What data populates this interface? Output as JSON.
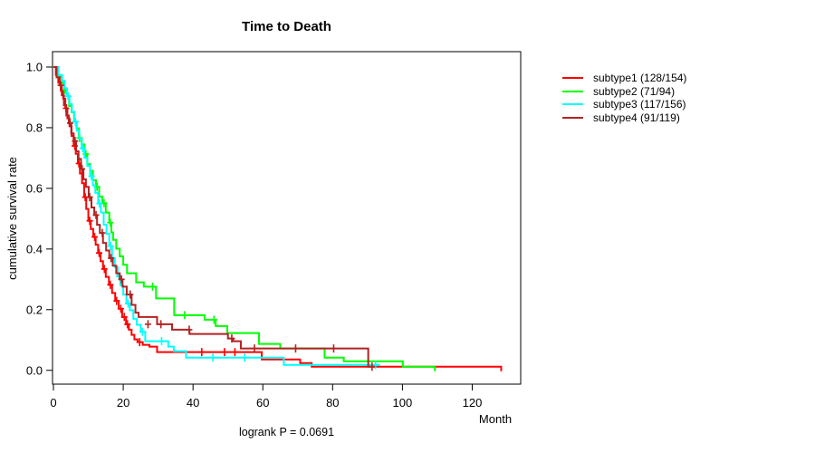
{
  "title": "Time to Death",
  "footer": "logrank P = 0.0691",
  "x_axis": {
    "label": "Month",
    "tick_labels": [
      "0",
      "20",
      "40",
      "60",
      "80",
      "100",
      "120"
    ],
    "tick_values": [
      0,
      20,
      40,
      60,
      80,
      100,
      120
    ]
  },
  "y_axis": {
    "label": "cumulative survival rate",
    "tick_labels": [
      "0.0",
      "0.2",
      "0.4",
      "0.6",
      "0.8",
      "1.0"
    ],
    "tick_values": [
      0,
      0.2,
      0.4,
      0.6,
      0.8,
      1.0
    ]
  },
  "colors": {
    "axis": "#000000",
    "background": "#ffffff",
    "subtype1": "#ff0000",
    "subtype2": "#00ff00",
    "subtype3": "#00ffff",
    "subtype4": "#b22222"
  },
  "chart_data": {
    "type": "line",
    "variant": "kaplan-meier-step",
    "title": "Time to Death",
    "xlabel": "Month",
    "ylabel": "cumulative survival rate",
    "annotation": "logrank P = 0.0691",
    "xlim": [
      0,
      134
    ],
    "ylim": [
      0,
      1
    ],
    "x_ticks": [
      0,
      20,
      40,
      60,
      80,
      100,
      120
    ],
    "y_ticks": [
      0,
      0.2,
      0.4,
      0.6,
      0.8,
      1.0
    ],
    "grid": false,
    "legend_position": "right",
    "series": [
      {
        "name": "subtype1",
        "legend_label": "subtype1 (128/154)",
        "color": "#ff0000",
        "events": 128,
        "n": 154,
        "end_month": 128.3,
        "terminal_drop": true,
        "steps": [
          [
            0,
            1.0
          ],
          [
            0.7,
            0.974
          ],
          [
            1.4,
            0.948
          ],
          [
            2.1,
            0.922
          ],
          [
            2.8,
            0.896
          ],
          [
            3.4,
            0.864
          ],
          [
            4.0,
            0.831
          ],
          [
            4.6,
            0.805
          ],
          [
            5.2,
            0.773
          ],
          [
            5.8,
            0.74
          ],
          [
            6.4,
            0.714
          ],
          [
            7.0,
            0.682
          ],
          [
            7.6,
            0.649
          ],
          [
            8.2,
            0.617
          ],
          [
            8.8,
            0.571
          ],
          [
            9.4,
            0.532
          ],
          [
            10.0,
            0.493
          ],
          [
            10.7,
            0.466
          ],
          [
            11.4,
            0.44
          ],
          [
            12.1,
            0.414
          ],
          [
            12.8,
            0.387
          ],
          [
            13.5,
            0.36
          ],
          [
            14.2,
            0.334
          ],
          [
            15.0,
            0.308
          ],
          [
            15.9,
            0.282
          ],
          [
            16.8,
            0.255
          ],
          [
            17.7,
            0.229
          ],
          [
            18.7,
            0.203
          ],
          [
            19.7,
            0.176
          ],
          [
            20.8,
            0.152
          ],
          [
            21.6,
            0.134
          ],
          [
            22.4,
            0.117
          ],
          [
            23.2,
            0.102
          ],
          [
            24.1,
            0.093
          ],
          [
            25.6,
            0.084
          ],
          [
            27.5,
            0.078
          ],
          [
            29.7,
            0.06
          ],
          [
            59.7,
            0.036
          ],
          [
            70.7,
            0.024
          ],
          [
            74.0,
            0.012
          ]
        ],
        "censors": [
          [
            3.6,
            0.864
          ],
          [
            6.1,
            0.74
          ],
          [
            7.3,
            0.682
          ],
          [
            9.1,
            0.571
          ],
          [
            10.4,
            0.493
          ],
          [
            11.8,
            0.44
          ],
          [
            13.1,
            0.387
          ],
          [
            14.6,
            0.334
          ],
          [
            16.3,
            0.282
          ],
          [
            18.1,
            0.229
          ],
          [
            19.3,
            0.203
          ],
          [
            20.3,
            0.176
          ],
          [
            21.2,
            0.152
          ],
          [
            24.7,
            0.093
          ],
          [
            42.5,
            0.06
          ],
          [
            49.0,
            0.06
          ],
          [
            52.0,
            0.06
          ]
        ]
      },
      {
        "name": "subtype2",
        "legend_label": "subtype2 (71/94)",
        "color": "#00ff00",
        "events": 71,
        "n": 94,
        "end_month": 109.3,
        "terminal_drop": true,
        "steps": [
          [
            0,
            1.0
          ],
          [
            1.2,
            0.968
          ],
          [
            2.4,
            0.947
          ],
          [
            3.1,
            0.925
          ],
          [
            3.8,
            0.904
          ],
          [
            4.5,
            0.872
          ],
          [
            5.2,
            0.851
          ],
          [
            5.9,
            0.82
          ],
          [
            6.6,
            0.798
          ],
          [
            7.3,
            0.766
          ],
          [
            8.1,
            0.745
          ],
          [
            8.9,
            0.713
          ],
          [
            9.7,
            0.68
          ],
          [
            10.5,
            0.658
          ],
          [
            11.3,
            0.627
          ],
          [
            12.2,
            0.605
          ],
          [
            13.1,
            0.573
          ],
          [
            14.0,
            0.551
          ],
          [
            15.0,
            0.52
          ],
          [
            16.0,
            0.487
          ],
          [
            16.6,
            0.455
          ],
          [
            17.1,
            0.43
          ],
          [
            18.0,
            0.401
          ],
          [
            19.0,
            0.376
          ],
          [
            20.0,
            0.348
          ],
          [
            21.1,
            0.32
          ],
          [
            23.7,
            0.29
          ],
          [
            25.9,
            0.276
          ],
          [
            29.4,
            0.237
          ],
          [
            34.6,
            0.182
          ],
          [
            43.3,
            0.167
          ],
          [
            46.5,
            0.146
          ],
          [
            49.8,
            0.123
          ],
          [
            58.9,
            0.087
          ],
          [
            65.0,
            0.072
          ],
          [
            77.7,
            0.042
          ],
          [
            83.2,
            0.03
          ],
          [
            100.1,
            0.012
          ]
        ],
        "censors": [
          [
            3.3,
            0.925
          ],
          [
            7.5,
            0.766
          ],
          [
            9.3,
            0.713
          ],
          [
            12.5,
            0.605
          ],
          [
            14.5,
            0.551
          ],
          [
            16.3,
            0.487
          ],
          [
            28.4,
            0.276
          ],
          [
            37.6,
            0.182
          ],
          [
            46.0,
            0.167
          ]
        ]
      },
      {
        "name": "subtype3",
        "legend_label": "subtype3 (117/156)",
        "color": "#00ffff",
        "events": 117,
        "n": 156,
        "end_month": 93.6,
        "terminal_drop": false,
        "steps": [
          [
            0,
            1.0
          ],
          [
            1.4,
            0.974
          ],
          [
            2.5,
            0.955
          ],
          [
            3.2,
            0.93
          ],
          [
            3.9,
            0.904
          ],
          [
            4.6,
            0.878
          ],
          [
            5.3,
            0.852
          ],
          [
            6.0,
            0.82
          ],
          [
            6.7,
            0.79
          ],
          [
            7.4,
            0.764
          ],
          [
            8.1,
            0.732
          ],
          [
            8.9,
            0.7
          ],
          [
            9.7,
            0.674
          ],
          [
            10.5,
            0.64
          ],
          [
            11.3,
            0.61
          ],
          [
            12.0,
            0.585
          ],
          [
            12.8,
            0.55
          ],
          [
            13.6,
            0.52
          ],
          [
            14.4,
            0.48
          ],
          [
            15.2,
            0.45
          ],
          [
            16.0,
            0.41
          ],
          [
            16.8,
            0.37
          ],
          [
            17.6,
            0.34
          ],
          [
            18.4,
            0.31
          ],
          [
            19.2,
            0.28
          ],
          [
            20.0,
            0.25
          ],
          [
            20.9,
            0.22
          ],
          [
            21.9,
            0.198
          ],
          [
            22.9,
            0.17
          ],
          [
            23.9,
            0.15
          ],
          [
            25.0,
            0.127
          ],
          [
            26.3,
            0.096
          ],
          [
            32.9,
            0.078
          ],
          [
            34.5,
            0.063
          ],
          [
            38.0,
            0.042
          ],
          [
            66.0,
            0.018
          ]
        ],
        "censors": [
          [
            4.2,
            0.904
          ],
          [
            6.3,
            0.82
          ],
          [
            8.4,
            0.732
          ],
          [
            10.9,
            0.64
          ],
          [
            13.2,
            0.55
          ],
          [
            16.4,
            0.41
          ],
          [
            18.8,
            0.31
          ],
          [
            21.4,
            0.22
          ],
          [
            25.5,
            0.127
          ],
          [
            31.0,
            0.096
          ],
          [
            45.7,
            0.042
          ],
          [
            54.8,
            0.042
          ],
          [
            92.3,
            0.018
          ]
        ]
      },
      {
        "name": "subtype4",
        "legend_label": "subtype4 (91/119)",
        "color": "#b22222",
        "events": 91,
        "n": 119,
        "end_month": 92.0,
        "terminal_drop": false,
        "steps": [
          [
            0,
            1.0
          ],
          [
            0.9,
            0.966
          ],
          [
            1.8,
            0.94
          ],
          [
            2.4,
            0.907
          ],
          [
            3.0,
            0.874
          ],
          [
            3.7,
            0.84
          ],
          [
            4.4,
            0.815
          ],
          [
            5.1,
            0.781
          ],
          [
            5.8,
            0.756
          ],
          [
            6.5,
            0.722
          ],
          [
            7.2,
            0.697
          ],
          [
            7.9,
            0.664
          ],
          [
            8.6,
            0.63
          ],
          [
            9.3,
            0.605
          ],
          [
            10.1,
            0.571
          ],
          [
            10.9,
            0.537
          ],
          [
            11.7,
            0.512
          ],
          [
            12.5,
            0.48
          ],
          [
            13.3,
            0.453
          ],
          [
            14.2,
            0.42
          ],
          [
            15.1,
            0.395
          ],
          [
            16.0,
            0.37
          ],
          [
            17.0,
            0.345
          ],
          [
            18.0,
            0.32
          ],
          [
            19.0,
            0.3
          ],
          [
            19.8,
            0.276
          ],
          [
            21.0,
            0.25
          ],
          [
            22.4,
            0.216
          ],
          [
            23.5,
            0.19
          ],
          [
            24.4,
            0.176
          ],
          [
            29.7,
            0.152
          ],
          [
            34.0,
            0.134
          ],
          [
            39.0,
            0.12
          ],
          [
            50.0,
            0.105
          ],
          [
            51.5,
            0.096
          ],
          [
            53.7,
            0.072
          ],
          [
            90.2,
            0.012
          ]
        ],
        "censors": [
          [
            2.1,
            0.94
          ],
          [
            4.8,
            0.815
          ],
          [
            6.2,
            0.756
          ],
          [
            8.2,
            0.664
          ],
          [
            10.4,
            0.571
          ],
          [
            12.2,
            0.512
          ],
          [
            14.0,
            0.453
          ],
          [
            16.5,
            0.37
          ],
          [
            19.5,
            0.3
          ],
          [
            22.0,
            0.25
          ],
          [
            27.1,
            0.152
          ],
          [
            30.8,
            0.152
          ],
          [
            38.9,
            0.134
          ],
          [
            51.1,
            0.105
          ],
          [
            57.6,
            0.072
          ],
          [
            69.4,
            0.072
          ],
          [
            80.3,
            0.072
          ],
          [
            91.3,
            0.012
          ]
        ]
      }
    ]
  }
}
